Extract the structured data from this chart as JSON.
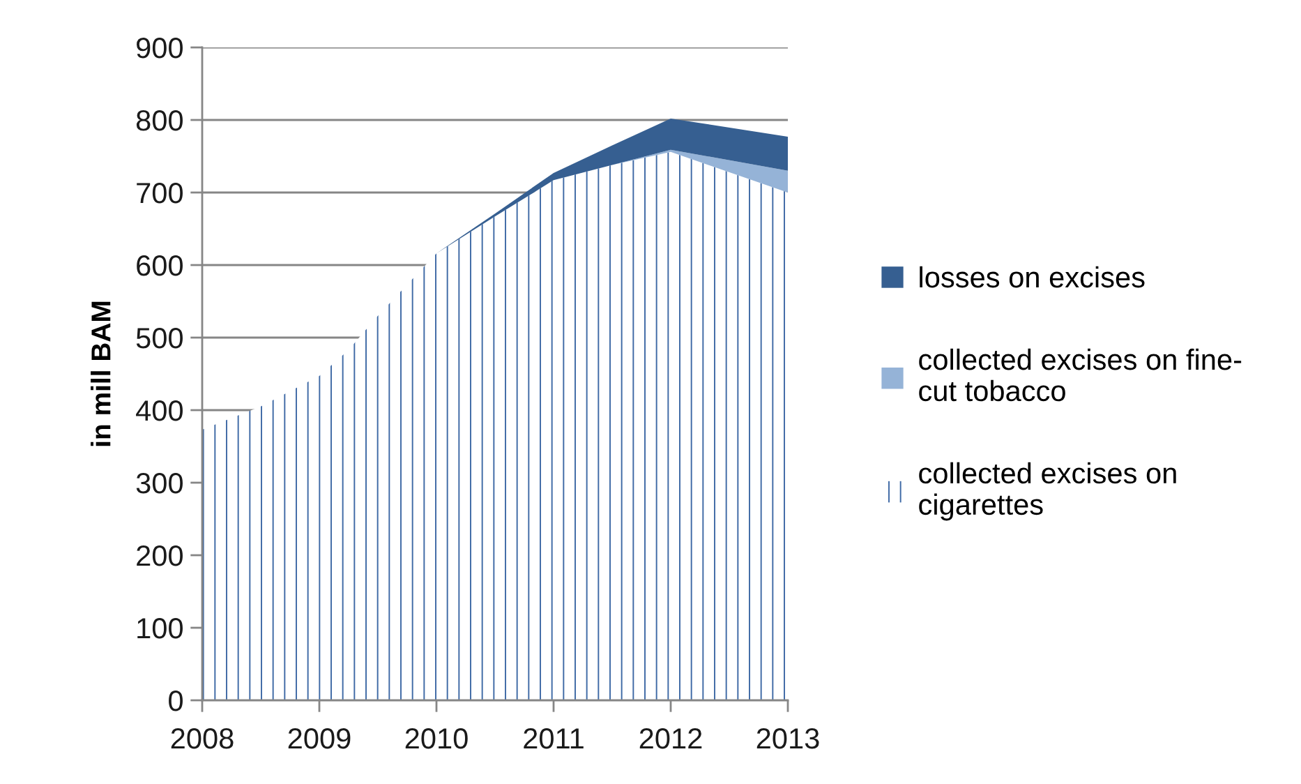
{
  "chart_data": {
    "type": "area",
    "stacked": true,
    "ylabel": "in mill BAM",
    "x": [
      2008,
      2008.5,
      2009,
      2009.25,
      2009.5,
      2010,
      2010.5,
      2011,
      2011.5,
      2012,
      2013
    ],
    "xlim": [
      2008,
      2013
    ],
    "xticks": [
      2008,
      2009,
      2010,
      2011,
      2012,
      2013
    ],
    "ylim": [
      0,
      900
    ],
    "yticks": [
      0,
      100,
      200,
      300,
      400,
      500,
      600,
      700,
      800,
      900
    ],
    "grid": "y",
    "legend": "right",
    "series": [
      {
        "name": "collected excises on cigarettes",
        "color": "#3f6aa6",
        "values": [
          373,
          405,
          447,
          483,
          530,
          616,
          667,
          717,
          738,
          756,
          700
        ]
      },
      {
        "name": "collected excises on fine-cut tobacco",
        "color": "#95b3d7",
        "values": [
          0,
          0,
          0,
          0,
          0,
          0,
          0,
          0,
          0,
          3,
          30
        ]
      },
      {
        "name": "losses on excises",
        "color": "#365f91",
        "values": [
          0,
          0,
          0,
          0,
          0,
          0,
          4,
          10,
          27,
          43,
          47
        ]
      }
    ]
  }
}
